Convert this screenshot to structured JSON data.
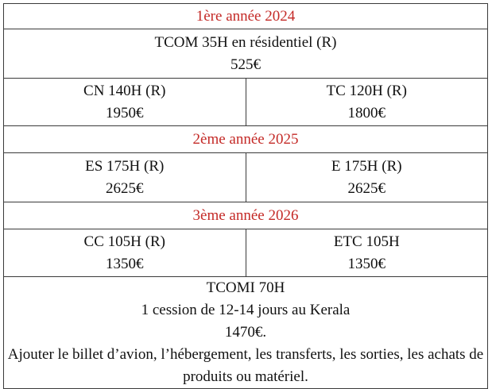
{
  "table": {
    "rows": [
      {
        "heading": "1ère année 2024"
      },
      {
        "cells": [
          {
            "lines": [
              "TCOM 35H en résidentiel (R)",
              "525€"
            ]
          }
        ]
      },
      {
        "cells": [
          {
            "lines": [
              "CN 140H (R)",
              "1950€"
            ]
          },
          {
            "lines": [
              "TC 120H (R)",
              "1800€"
            ]
          }
        ]
      },
      {
        "heading": "2ème année 2025"
      },
      {
        "cells": [
          {
            "lines": [
              "ES 175H (R)",
              "2625€"
            ]
          },
          {
            "lines": [
              "E 175H (R)",
              "2625€"
            ]
          }
        ]
      },
      {
        "heading": "3ème année 2026"
      },
      {
        "cells": [
          {
            "lines": [
              "CC 105H (R)",
              "1350€"
            ]
          },
          {
            "lines": [
              "ETC 105H",
              "1350€"
            ]
          }
        ]
      },
      {
        "cells": [
          {
            "lines": [
              "TCOMI 70H",
              "1 cession de 12-14 jours au Kerala",
              "1470€.",
              "Ajouter le billet d’avion, l’hébergement, les transferts, les sorties, les achats de produits ou matériel."
            ]
          }
        ]
      }
    ]
  }
}
